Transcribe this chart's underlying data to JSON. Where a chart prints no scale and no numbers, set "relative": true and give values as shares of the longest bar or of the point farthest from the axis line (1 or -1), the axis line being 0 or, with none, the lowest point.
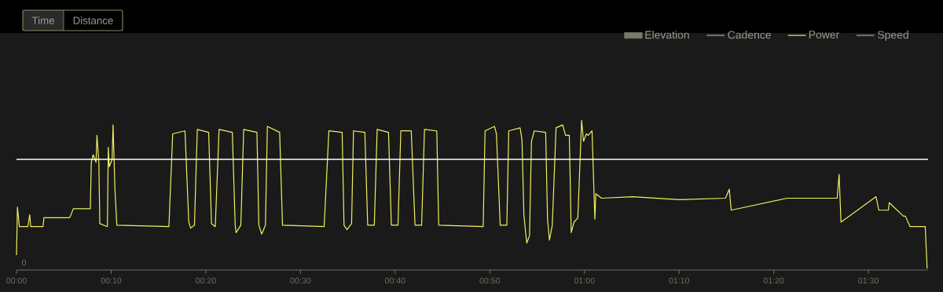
{
  "chart_data": {
    "type": "line",
    "relative": true,
    "annotations": [
      "Time",
      "Distance",
      "0"
    ],
    "x": [
      0,
      0.1,
      0.3,
      1.2,
      1.4,
      1.5,
      2.8,
      2.9,
      5.6,
      5.7,
      6.0,
      7.8,
      7.9,
      8.1,
      8.4,
      8.5,
      8.7,
      8.8,
      9.6,
      9.7,
      9.8,
      10.1,
      10.2,
      10.4,
      10.6,
      16.1,
      16.5,
      17.8,
      18.2,
      18.4,
      18.8,
      19.1,
      20.3,
      20.6,
      21.0,
      21.4,
      22.8,
      23.1,
      23.2,
      23.7,
      24.0,
      25.4,
      25.6,
      25.9,
      26.3,
      26.5,
      27.8,
      28.1,
      32.5,
      33.0,
      34.4,
      34.6,
      34.9,
      35.4,
      35.6,
      36.8,
      37.1,
      37.8,
      38.1,
      39.3,
      39.6,
      40.3,
      40.6,
      41.7,
      42.1,
      42.8,
      43.1,
      44.4,
      44.6,
      49.3,
      49.5,
      50.5,
      50.7,
      51.1,
      51.8,
      52.0,
      53.2,
      53.4,
      53.6,
      53.9,
      54.2,
      54.4,
      54.7,
      55.9,
      56.1,
      56.3,
      56.6,
      57.0,
      57.7,
      58.0,
      58.4,
      58.6,
      58.9,
      59.3,
      59.7,
      59.9,
      60.2,
      60.4,
      60.8,
      61.1,
      61.2,
      61.8,
      65.1,
      70.0,
      74.9,
      75.3,
      75.5,
      81.4,
      86.7,
      86.9,
      87.1,
      90.8,
      91.1,
      92.1,
      92.2,
      93.7,
      93.9,
      94.4,
      95.8,
      96.0,
      96.2
    ],
    "series": [
      {
        "name": "Elevation",
        "type": "area",
        "color": "#7a7a6a",
        "values": [
          null,
          null,
          null,
          null,
          null,
          null,
          null,
          null,
          null,
          null,
          null,
          null,
          null,
          null,
          null,
          null,
          null,
          null,
          null,
          null,
          null,
          null,
          null,
          null,
          null,
          null,
          null,
          null,
          null,
          null,
          null,
          null,
          null,
          null,
          null,
          null,
          null,
          null,
          null,
          null,
          null,
          null,
          null,
          null,
          null,
          null,
          null,
          null,
          null,
          null,
          null,
          null,
          null,
          null,
          null,
          null,
          null,
          null,
          null,
          null,
          null,
          null,
          null,
          null,
          null,
          null,
          null,
          null,
          null,
          null,
          null,
          null,
          null,
          null,
          null,
          null,
          null,
          null,
          null,
          null,
          null,
          null,
          null,
          null,
          null,
          null,
          null,
          null,
          null,
          null,
          null,
          null,
          null,
          null,
          null,
          null,
          null,
          null,
          null,
          null,
          null,
          null,
          null,
          null,
          null,
          null,
          null,
          null,
          null,
          null,
          null,
          null,
          null,
          null,
          null,
          null,
          null,
          null,
          null,
          null,
          null
        ]
      },
      {
        "name": "Cadence",
        "color": "#707070",
        "values": [
          null,
          null,
          null,
          null,
          null,
          null,
          null,
          null,
          null,
          null,
          null,
          null,
          null,
          null,
          null,
          null,
          null,
          null,
          null,
          null,
          null,
          null,
          null,
          null,
          null,
          null,
          null,
          null,
          null,
          null,
          null,
          null,
          null,
          null,
          null,
          null,
          null,
          null,
          null,
          null,
          null,
          null,
          null,
          null,
          null,
          null,
          null,
          null,
          null,
          null,
          null,
          null,
          null,
          null,
          null,
          null,
          null,
          null,
          null,
          null,
          null,
          null,
          null,
          null,
          null,
          null,
          null,
          null,
          null,
          null,
          null,
          null,
          null,
          null,
          null,
          null,
          null,
          null,
          null,
          null,
          null,
          null,
          null,
          null,
          null,
          null,
          null,
          null,
          null,
          null,
          null,
          null,
          null,
          null,
          null,
          null,
          null,
          null,
          null,
          null,
          null,
          null,
          null,
          null,
          null,
          null,
          null,
          null,
          null,
          null,
          null,
          null,
          null,
          null,
          null,
          null,
          null,
          null,
          null,
          null,
          null
        ]
      },
      {
        "name": "Power",
        "color": "#f0f060",
        "values": [
          0.1,
          0.42,
          0.29,
          0.29,
          0.37,
          0.29,
          0.29,
          0.35,
          0.35,
          0.36,
          0.41,
          0.41,
          0.72,
          0.77,
          0.72,
          0.9,
          0.72,
          0.31,
          0.29,
          0.82,
          0.69,
          0.74,
          0.97,
          0.54,
          0.3,
          0.29,
          0.91,
          0.93,
          0.32,
          0.28,
          0.3,
          0.94,
          0.92,
          0.31,
          0.29,
          0.94,
          0.92,
          0.3,
          0.25,
          0.3,
          0.94,
          0.92,
          0.3,
          0.24,
          0.3,
          0.96,
          0.92,
          0.3,
          0.29,
          0.93,
          0.92,
          0.3,
          0.27,
          0.31,
          0.93,
          0.92,
          0.3,
          0.3,
          0.94,
          0.92,
          0.3,
          0.3,
          0.93,
          0.93,
          0.3,
          0.3,
          0.94,
          0.93,
          0.3,
          0.29,
          0.93,
          0.96,
          0.91,
          0.3,
          0.3,
          0.93,
          0.95,
          0.87,
          0.37,
          0.18,
          0.23,
          0.86,
          0.93,
          0.92,
          0.34,
          0.2,
          0.3,
          0.95,
          0.97,
          0.9,
          0.9,
          0.25,
          0.32,
          0.35,
          1.0,
          0.86,
          0.91,
          0.9,
          0.93,
          0.34,
          0.51,
          0.48,
          0.49,
          0.47,
          0.48,
          0.54,
          0.4,
          0.48,
          0.48,
          0.64,
          0.32,
          0.49,
          0.4,
          0.4,
          0.45,
          0.36,
          0.36,
          0.29,
          0.29,
          0.29,
          0.01
        ]
      },
      {
        "name": "Speed",
        "color": "#707070",
        "values": [
          null,
          null,
          null,
          null,
          null,
          null,
          null,
          null,
          null,
          null,
          null,
          null,
          null,
          null,
          null,
          null,
          null,
          null,
          null,
          null,
          null,
          null,
          null,
          null,
          null,
          null,
          null,
          null,
          null,
          null,
          null,
          null,
          null,
          null,
          null,
          null,
          null,
          null,
          null,
          null,
          null,
          null,
          null,
          null,
          null,
          null,
          null,
          null,
          null,
          null,
          null,
          null,
          null,
          null,
          null,
          null,
          null,
          null,
          null,
          null,
          null,
          null,
          null,
          null,
          null,
          null,
          null,
          null,
          null,
          null,
          null,
          null,
          null,
          null,
          null,
          null,
          null,
          null,
          null,
          null,
          null,
          null,
          null,
          null,
          null,
          null,
          null,
          null,
          null,
          null,
          null,
          null,
          null,
          null,
          null,
          null,
          null,
          null,
          null,
          null,
          null,
          null,
          null,
          null,
          null,
          null,
          null,
          null,
          null,
          null,
          null,
          null,
          null,
          null,
          null,
          null,
          null,
          null,
          null,
          null,
          null
        ]
      }
    ],
    "xlim": [
      0,
      96.3
    ],
    "xticks": [
      {
        "value": 0,
        "label": "00:00"
      },
      {
        "value": 10,
        "label": "00:10"
      },
      {
        "value": 20,
        "label": "00:20"
      },
      {
        "value": 30,
        "label": "00:30"
      },
      {
        "value": 40,
        "label": "00:40"
      },
      {
        "value": 50,
        "label": "00:50"
      },
      {
        "value": 60,
        "label": "01:00"
      },
      {
        "value": 70,
        "label": "01:10"
      },
      {
        "value": 80,
        "label": "01:20"
      },
      {
        "value": 90,
        "label": "01:30"
      }
    ],
    "ref_lines": [
      {
        "axis": "y",
        "value": 0.74,
        "color": "#ffffff"
      }
    ],
    "legend": "top right"
  }
}
